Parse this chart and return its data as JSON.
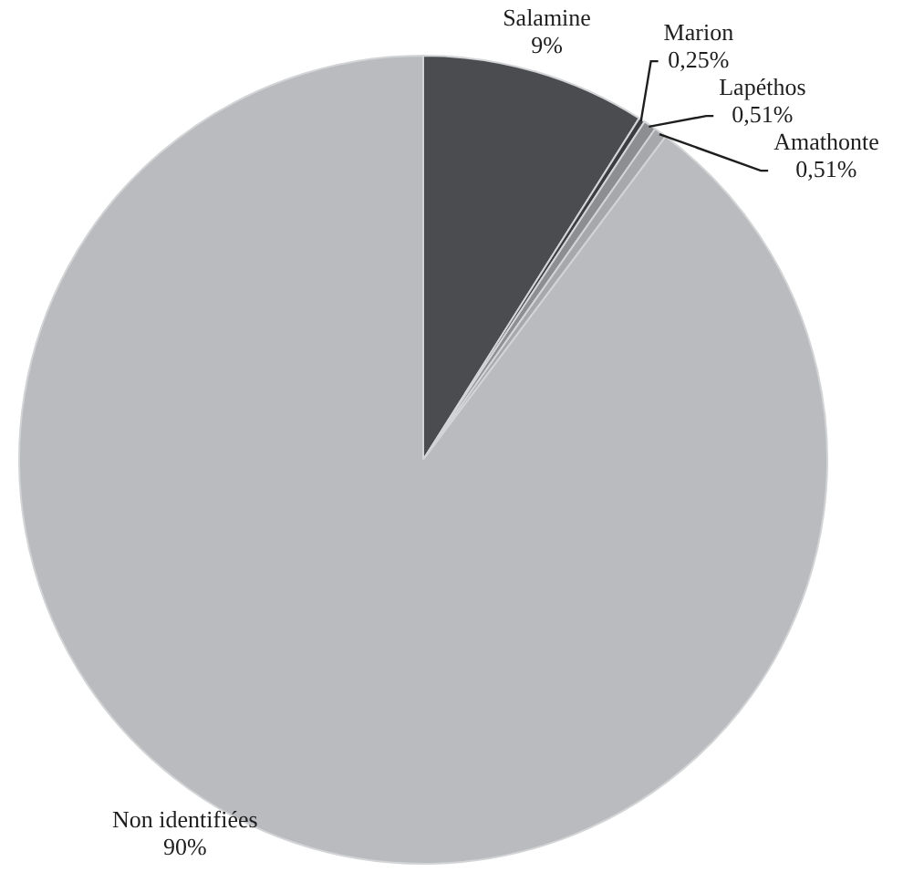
{
  "chart_data": {
    "type": "pie",
    "categories": [
      "Salamine",
      "Marion",
      "Lapéthos",
      "Amathonte",
      "Non identifiées"
    ],
    "values": [
      9,
      0.25,
      0.51,
      0.51,
      90
    ],
    "colors": [
      "#4a4c50",
      "#3b3d41",
      "#8c8e92",
      "#a6a8ac",
      "#b9bbbe"
    ],
    "value_labels": [
      "9%",
      "0,25%",
      "0,51%",
      "0,51%",
      "90%"
    ]
  }
}
